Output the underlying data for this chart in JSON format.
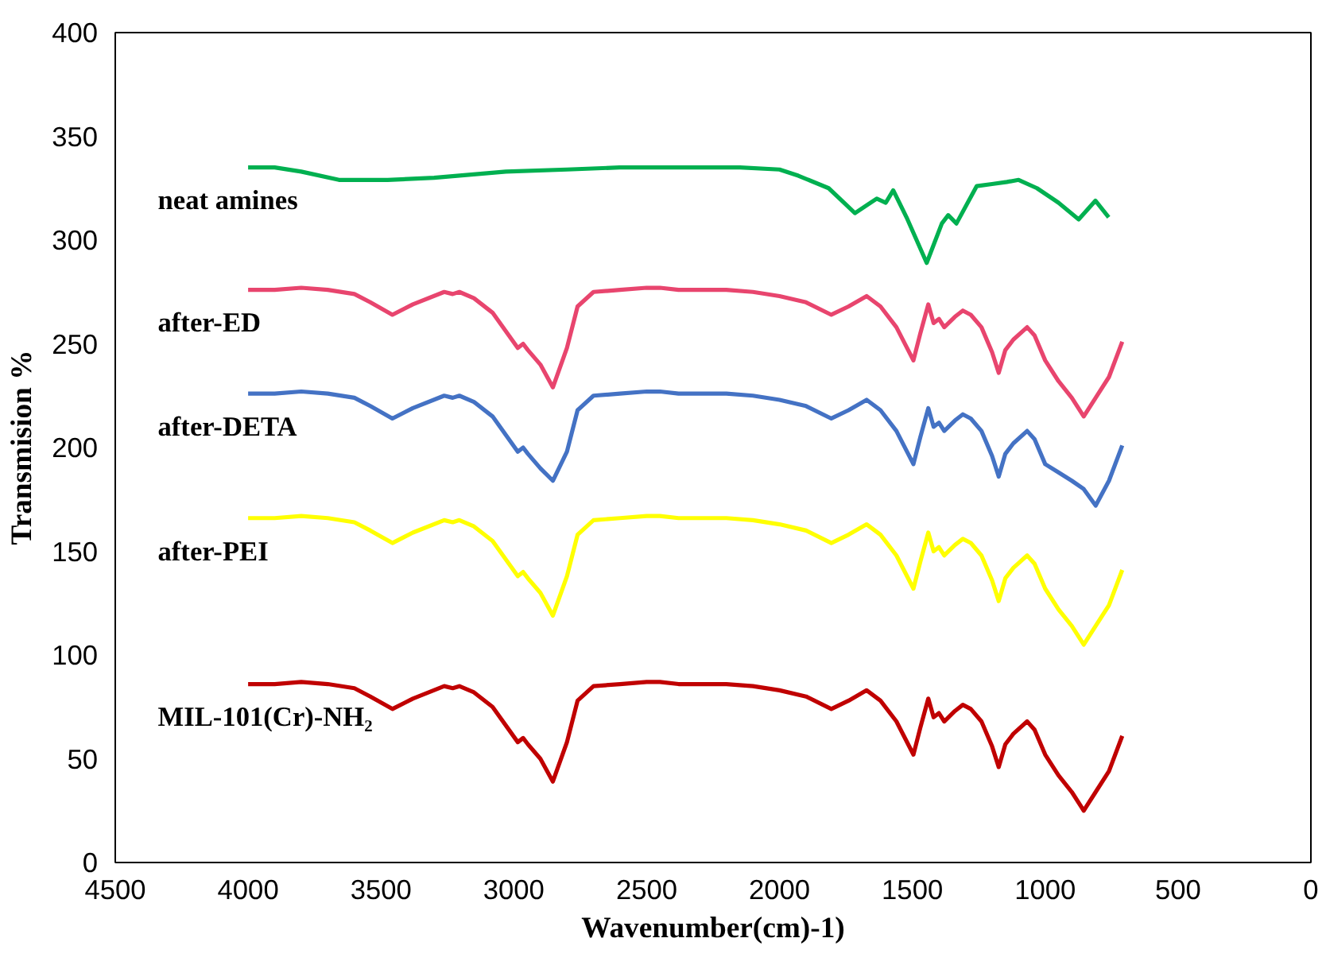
{
  "chart_data": {
    "type": "line",
    "xlabel": "Wavenumber(cm)-1)",
    "ylabel": "Transmision %",
    "xlim": [
      4500,
      0
    ],
    "xticks": [
      4500,
      4000,
      3500,
      3000,
      2500,
      2000,
      1500,
      1000,
      500,
      0
    ],
    "ylim": [
      0,
      400
    ],
    "yticks": [
      0,
      50,
      100,
      150,
      200,
      250,
      300,
      350,
      400
    ],
    "grid": false,
    "legend": false,
    "series": [
      {
        "name": "neat amines",
        "color": "#00b050",
        "x": [
          4000,
          3900,
          3800,
          3658,
          3475,
          3300,
          3030,
          2800,
          2602,
          2400,
          2149,
          2000,
          1929,
          1815,
          1716,
          1634,
          1600,
          1572,
          1522,
          1446,
          1389,
          1365,
          1334,
          1258,
          1200,
          1144,
          1100,
          1031,
          950,
          874,
          811,
          761
        ],
        "values": [
          335,
          335,
          333,
          329,
          329,
          330,
          333,
          334,
          335,
          335,
          335,
          334,
          331,
          325,
          313,
          320,
          318,
          324,
          311,
          289,
          308,
          312,
          308,
          326,
          327,
          328,
          329,
          325,
          318,
          310,
          319,
          311
        ]
      },
      {
        "name": "after-ED",
        "color": "#e8456e",
        "values": [
          276,
          276,
          277,
          276,
          274,
          270,
          264,
          269,
          275,
          274,
          275,
          272,
          265,
          248,
          250,
          247,
          240,
          229,
          248,
          268,
          275,
          276,
          277,
          277,
          276,
          276,
          276,
          275,
          273,
          270,
          264,
          268,
          273,
          268,
          258,
          242,
          255,
          269,
          260,
          262,
          258,
          263,
          266,
          264,
          258,
          246,
          236,
          247,
          252,
          258,
          254,
          242,
          232,
          224,
          215,
          224,
          234,
          251
        ]
      },
      {
        "name": "after-DETA",
        "color": "#4472c4",
        "values": [
          226,
          226,
          227,
          226,
          224,
          220,
          214,
          219,
          225,
          224,
          225,
          222,
          215,
          198,
          200,
          197,
          190,
          184,
          198,
          218,
          225,
          226,
          227,
          227,
          226,
          226,
          226,
          225,
          223,
          220,
          214,
          218,
          223,
          218,
          208,
          192,
          205,
          219,
          210,
          212,
          208,
          213,
          216,
          214,
          208,
          196,
          186,
          197,
          202,
          208,
          204,
          192,
          188,
          184,
          180,
          172,
          184,
          201
        ]
      },
      {
        "name": "after-PEI",
        "color": "#ffff00",
        "values": [
          166,
          166,
          167,
          166,
          164,
          160,
          154,
          159,
          165,
          164,
          165,
          162,
          155,
          138,
          140,
          137,
          130,
          119,
          138,
          158,
          165,
          166,
          167,
          167,
          166,
          166,
          166,
          165,
          163,
          160,
          154,
          158,
          163,
          158,
          148,
          132,
          145,
          159,
          150,
          152,
          148,
          153,
          156,
          154,
          148,
          136,
          126,
          137,
          142,
          148,
          144,
          132,
          122,
          114,
          105,
          114,
          124,
          141
        ]
      },
      {
        "name": "MIL-101(Cr)-NH₂",
        "color": "#c00000",
        "values": [
          86,
          86,
          87,
          86,
          84,
          80,
          74,
          79,
          85,
          84,
          85,
          82,
          75,
          58,
          60,
          57,
          50,
          39,
          58,
          78,
          85,
          86,
          87,
          87,
          86,
          86,
          86,
          85,
          83,
          80,
          74,
          78,
          83,
          78,
          68,
          52,
          65,
          79,
          70,
          72,
          68,
          73,
          76,
          74,
          68,
          56,
          46,
          57,
          62,
          68,
          64,
          52,
          42,
          34,
          25,
          34,
          44,
          61
        ]
      }
    ],
    "x": [
      4000,
      3900,
      3800,
      3700,
      3600,
      3540,
      3457,
      3380,
      3262,
      3230,
      3205,
      3150,
      3080,
      2985,
      2965,
      2947,
      2900,
      2853,
      2800,
      2760,
      2700,
      2600,
      2500,
      2450,
      2380,
      2300,
      2200,
      2100,
      2000,
      1900,
      1805,
      1740,
      1672,
      1620,
      1560,
      1496,
      1470,
      1440,
      1420,
      1400,
      1380,
      1340,
      1310,
      1280,
      1240,
      1200,
      1175,
      1150,
      1120,
      1068,
      1040,
      1000,
      950,
      900,
      855,
      810,
      760,
      710
    ],
    "marker": "none",
    "line_style": "solid"
  }
}
